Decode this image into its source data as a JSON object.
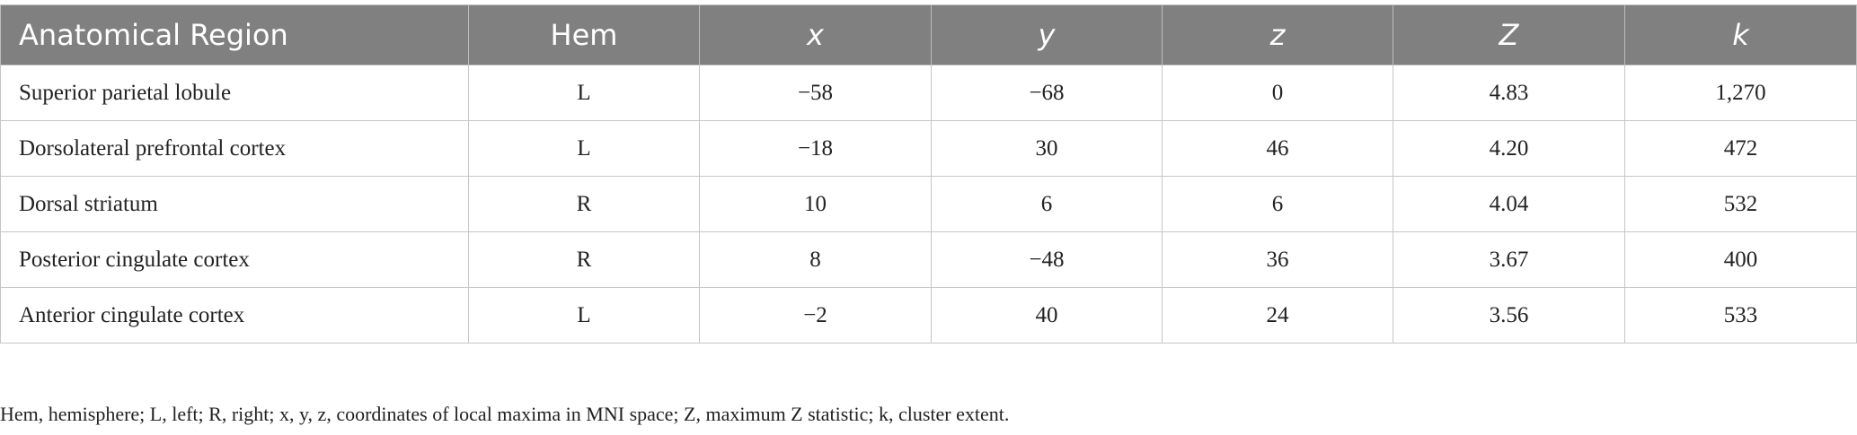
{
  "table": {
    "header": [
      "Anatomical Region",
      "Hem",
      "x",
      "y",
      "z",
      "Z",
      "k"
    ],
    "rows": [
      [
        "Superior parietal lobule",
        "L",
        "−58",
        "−68",
        "0",
        "4.83",
        "1,270"
      ],
      [
        "Dorsolateral prefrontal cortex",
        "L",
        "−18",
        "30",
        "46",
        "4.20",
        "472"
      ],
      [
        "Dorsal striatum",
        "R",
        "10",
        "6",
        "6",
        "4.04",
        "532"
      ],
      [
        "Posterior cingulate cortex",
        "R",
        "8",
        "−48",
        "36",
        "3.67",
        "400"
      ],
      [
        "Anterior cingulate cortex",
        "L",
        "−2",
        "40",
        "24",
        "3.56",
        "533"
      ]
    ]
  },
  "footnote": "Hem, hemisphere; L, left; R, right; x, y, z, coordinates of local maxima in MNI space; Z, maximum Z statistic; k, cluster extent."
}
